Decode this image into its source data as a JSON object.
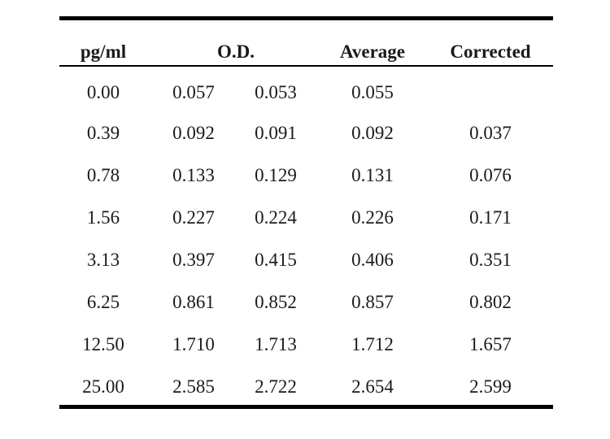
{
  "table": {
    "headers": {
      "concentration": "pg/ml",
      "od": "O.D.",
      "average": "Average",
      "corrected": "Corrected"
    },
    "rows": [
      {
        "concentration": "0.00",
        "od1": "0.057",
        "od2": "0.053",
        "average": "0.055",
        "corrected": ""
      },
      {
        "concentration": "0.39",
        "od1": "0.092",
        "od2": "0.091",
        "average": "0.092",
        "corrected": "0.037"
      },
      {
        "concentration": "0.78",
        "od1": "0.133",
        "od2": "0.129",
        "average": "0.131",
        "corrected": "0.076"
      },
      {
        "concentration": "1.56",
        "od1": "0.227",
        "od2": "0.224",
        "average": "0.226",
        "corrected": "0.171"
      },
      {
        "concentration": "3.13",
        "od1": "0.397",
        "od2": "0.415",
        "average": "0.406",
        "corrected": "0.351"
      },
      {
        "concentration": "6.25",
        "od1": "0.861",
        "od2": "0.852",
        "average": "0.857",
        "corrected": "0.802"
      },
      {
        "concentration": "12.50",
        "od1": "1.710",
        "od2": "1.713",
        "average": "1.712",
        "corrected": "1.657"
      },
      {
        "concentration": "25.00",
        "od1": "2.585",
        "od2": "2.722",
        "average": "2.654",
        "corrected": "2.599"
      }
    ]
  }
}
